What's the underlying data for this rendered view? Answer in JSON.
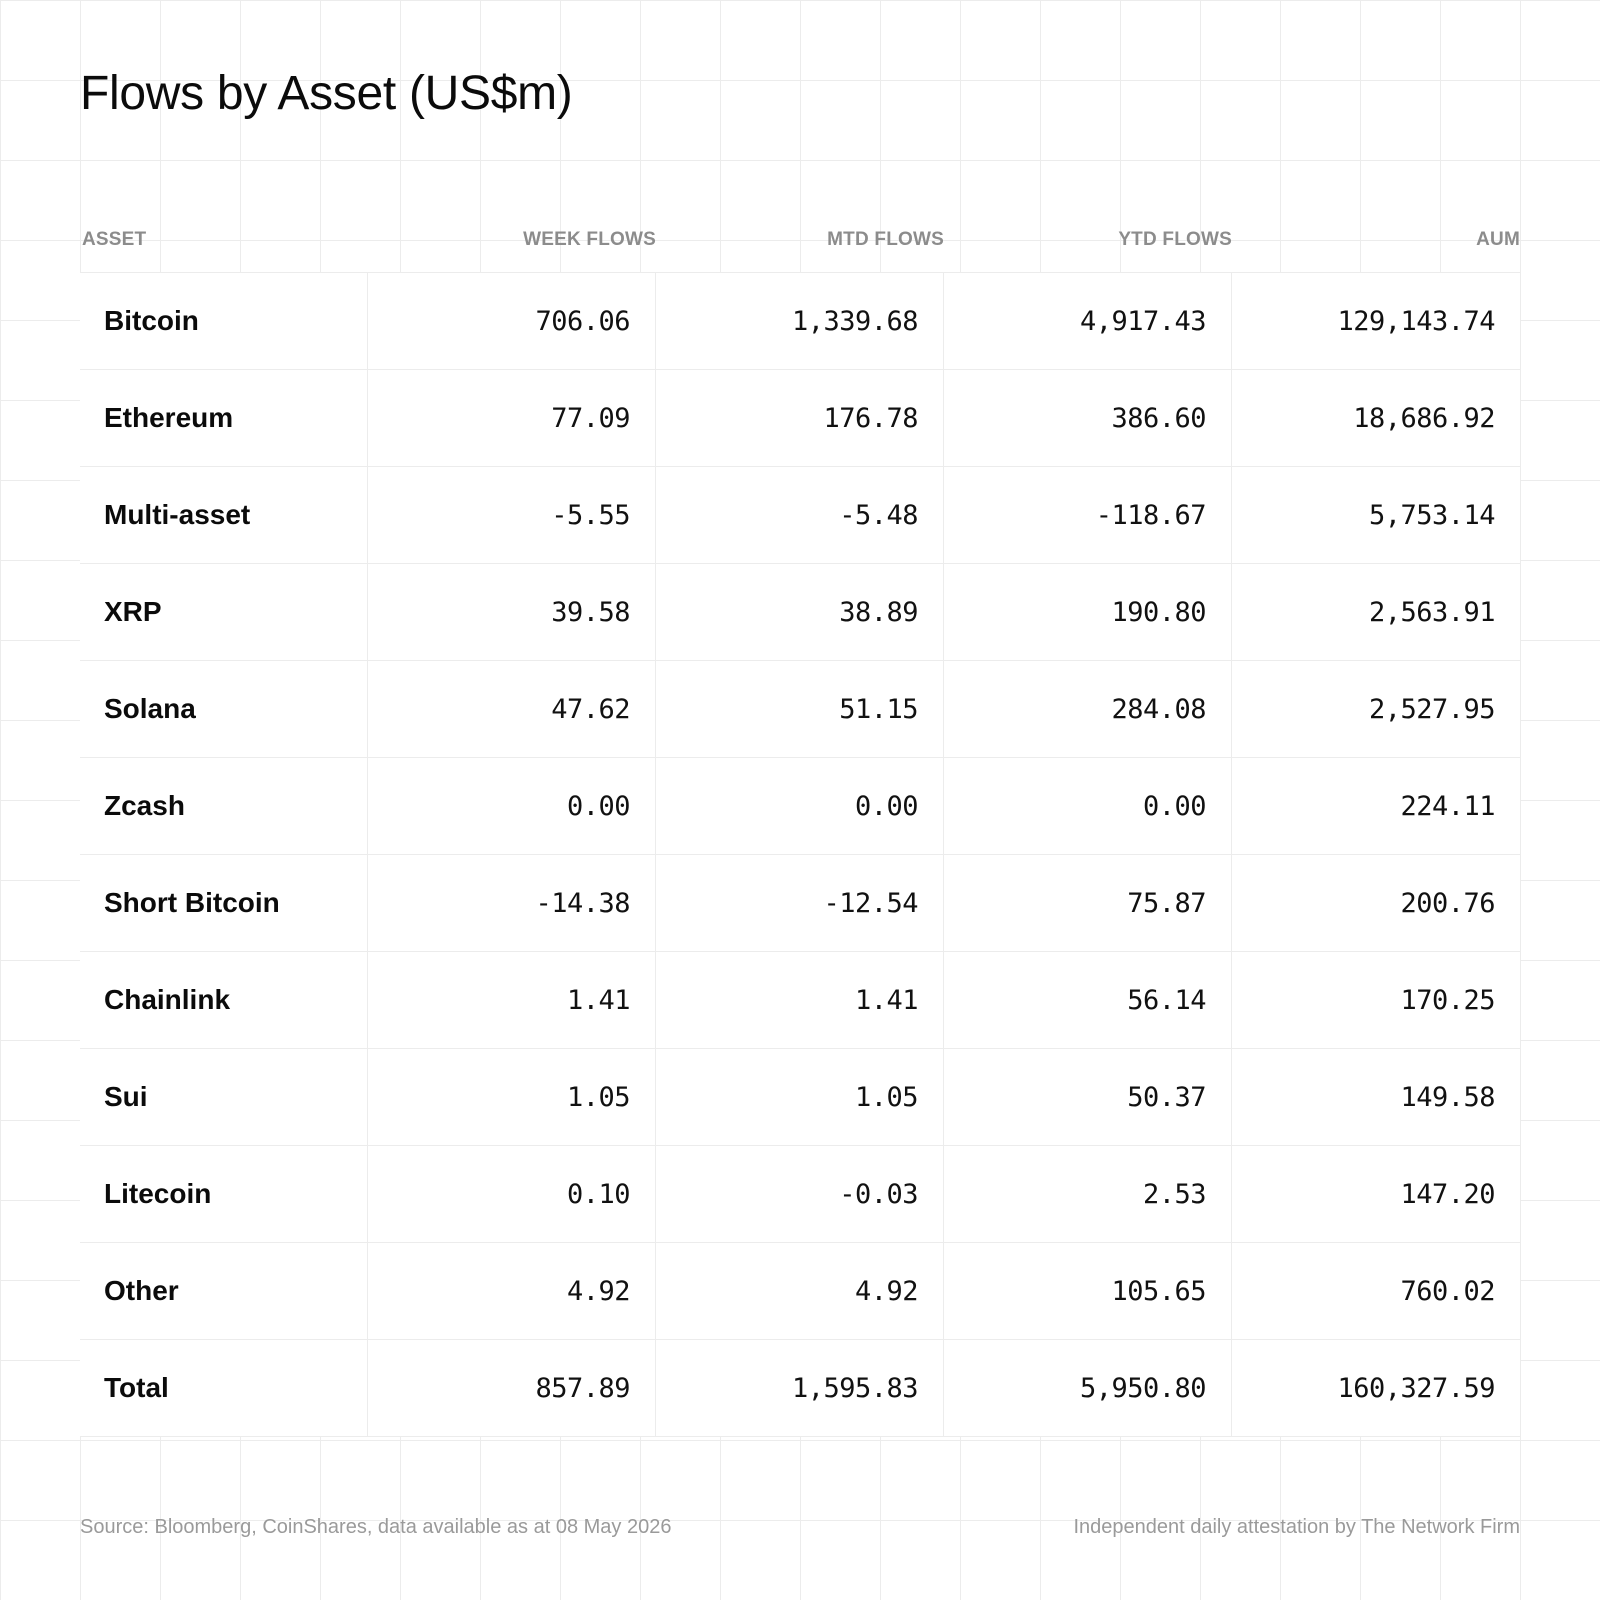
{
  "title": "Flows by Asset (US$m)",
  "columns": [
    "ASSET",
    "WEEK FLOWS",
    "MTD FLOWS",
    "YTD FLOWS",
    "AUM"
  ],
  "footer": {
    "source": "Source: Bloomberg, CoinShares, data available as at 08 May 2026",
    "attestation": "Independent daily attestation by The Network Firm"
  },
  "chart_data": {
    "type": "table",
    "title": "Flows by Asset (US$m)",
    "columns": [
      "ASSET",
      "WEEK FLOWS",
      "MTD FLOWS",
      "YTD FLOWS",
      "AUM"
    ],
    "rows": [
      {
        "asset": "Bitcoin",
        "week": "706.06",
        "mtd": "1,339.68",
        "ytd": "4,917.43",
        "aum": "129,143.74"
      },
      {
        "asset": "Ethereum",
        "week": "77.09",
        "mtd": "176.78",
        "ytd": "386.60",
        "aum": "18,686.92"
      },
      {
        "asset": "Multi-asset",
        "week": "-5.55",
        "mtd": "-5.48",
        "ytd": "-118.67",
        "aum": "5,753.14"
      },
      {
        "asset": "XRP",
        "week": "39.58",
        "mtd": "38.89",
        "ytd": "190.80",
        "aum": "2,563.91"
      },
      {
        "asset": "Solana",
        "week": "47.62",
        "mtd": "51.15",
        "ytd": "284.08",
        "aum": "2,527.95"
      },
      {
        "asset": "Zcash",
        "week": "0.00",
        "mtd": "0.00",
        "ytd": "0.00",
        "aum": "224.11"
      },
      {
        "asset": "Short Bitcoin",
        "week": "-14.38",
        "mtd": "-12.54",
        "ytd": "75.87",
        "aum": "200.76"
      },
      {
        "asset": "Chainlink",
        "week": "1.41",
        "mtd": "1.41",
        "ytd": "56.14",
        "aum": "170.25"
      },
      {
        "asset": "Sui",
        "week": "1.05",
        "mtd": "1.05",
        "ytd": "50.37",
        "aum": "149.58"
      },
      {
        "asset": "Litecoin",
        "week": "0.10",
        "mtd": "-0.03",
        "ytd": "2.53",
        "aum": "147.20"
      },
      {
        "asset": "Other",
        "week": "4.92",
        "mtd": "4.92",
        "ytd": "105.65",
        "aum": "760.02"
      },
      {
        "asset": "Total",
        "week": "857.89",
        "mtd": "1,595.83",
        "ytd": "5,950.80",
        "aum": "160,327.59"
      }
    ]
  }
}
